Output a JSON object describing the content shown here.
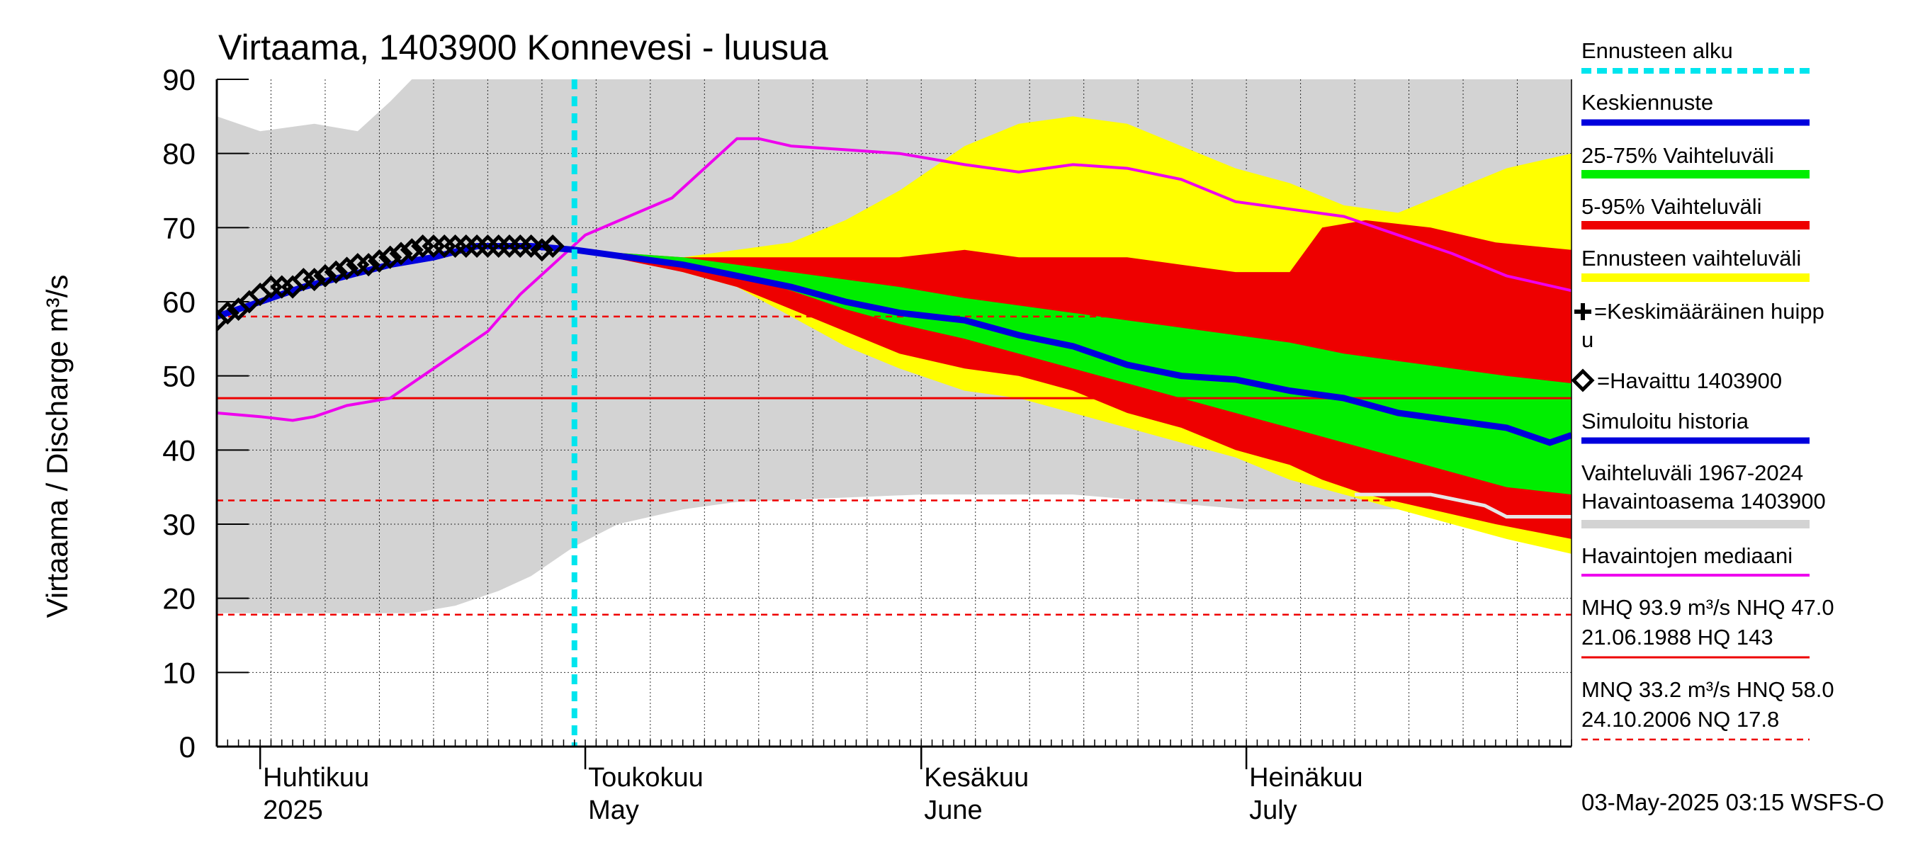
{
  "chart_data": {
    "type": "area",
    "title": "Virtaama, 1403900 Konnevesi - luusua",
    "ylabel": "Virtaama / Discharge    m³/s",
    "ylim": [
      0,
      90
    ],
    "yticks": [
      "0",
      "10",
      "20",
      "30",
      "40",
      "50",
      "60",
      "70",
      "80",
      "90"
    ],
    "xlim": [
      "2025-03-28",
      "2025-07-31"
    ],
    "month_labels": [
      {
        "fi": "Huhtikuu",
        "en": "2025",
        "date": "2025-04-01"
      },
      {
        "fi": "Toukokuu",
        "en": "May",
        "date": "2025-05-01"
      },
      {
        "fi": "Kesäkuu",
        "en": "June",
        "date": "2025-06-01"
      },
      {
        "fi": "Heinäkuu",
        "en": "July",
        "date": "2025-07-01"
      }
    ],
    "forecast_start": "2025-04-30",
    "colors": {
      "forecast_start": "#00e5ee",
      "mean_forecast": "#0000dd",
      "p25_75": "#00ee00",
      "p5_95": "#ee0000",
      "forecast_range": "#ffff00",
      "historical_range": "#d3d3d3",
      "median": "#ee00ee",
      "observed": "#000000",
      "ref_line": "#ee0000",
      "simulated": "#0000dd"
    },
    "reference_lines": [
      {
        "value": 47.0,
        "style": "solid"
      },
      {
        "value": 58.0,
        "style": "dashed"
      },
      {
        "value": 33.2,
        "style": "dashed"
      },
      {
        "value": 17.8,
        "style": "dashed"
      }
    ],
    "historical_range": [
      {
        "x": "2025-03-28",
        "low": 18,
        "high": 85
      },
      {
        "x": "2025-04-01",
        "low": 18,
        "high": 83
      },
      {
        "x": "2025-04-06",
        "low": 18,
        "high": 84
      },
      {
        "x": "2025-04-10",
        "low": 18,
        "high": 83
      },
      {
        "x": "2025-04-13",
        "low": 18,
        "high": 87
      },
      {
        "x": "2025-04-15",
        "low": 18,
        "high": 90
      },
      {
        "x": "2025-04-19",
        "low": 19,
        "high": 90
      },
      {
        "x": "2025-04-23",
        "low": 21,
        "high": 90
      },
      {
        "x": "2025-04-26",
        "low": 23,
        "high": 90
      },
      {
        "x": "2025-04-30",
        "low": 27,
        "high": 90
      },
      {
        "x": "2025-05-04",
        "low": 30,
        "high": 90
      },
      {
        "x": "2025-05-10",
        "low": 32,
        "high": 90
      },
      {
        "x": "2025-05-15",
        "low": 33,
        "high": 90
      },
      {
        "x": "2025-06-01",
        "low": 34,
        "high": 90
      },
      {
        "x": "2025-06-15",
        "low": 34,
        "high": 90
      },
      {
        "x": "2025-07-01",
        "low": 32,
        "high": 90
      },
      {
        "x": "2025-07-10",
        "low": 32,
        "high": 90
      },
      {
        "x": "2025-07-20",
        "low": 32,
        "high": 90
      },
      {
        "x": "2025-07-31",
        "low": 32,
        "high": 90
      }
    ],
    "forecast_range": [
      {
        "x": "2025-04-30",
        "low": 67,
        "high": 67
      },
      {
        "x": "2025-05-05",
        "low": 66,
        "high": 66
      },
      {
        "x": "2025-05-10",
        "low": 64,
        "high": 66
      },
      {
        "x": "2025-05-15",
        "low": 62,
        "high": 67
      },
      {
        "x": "2025-05-20",
        "low": 58,
        "high": 68
      },
      {
        "x": "2025-05-25",
        "low": 54,
        "high": 71
      },
      {
        "x": "2025-05-30",
        "low": 51,
        "high": 75
      },
      {
        "x": "2025-06-05",
        "low": 48,
        "high": 81
      },
      {
        "x": "2025-06-10",
        "low": 47,
        "high": 84
      },
      {
        "x": "2025-06-15",
        "low": 45,
        "high": 85
      },
      {
        "x": "2025-06-20",
        "low": 43,
        "high": 84
      },
      {
        "x": "2025-06-25",
        "low": 41,
        "high": 81
      },
      {
        "x": "2025-06-30",
        "low": 39,
        "high": 78
      },
      {
        "x": "2025-07-05",
        "low": 36,
        "high": 76
      },
      {
        "x": "2025-07-10",
        "low": 34,
        "high": 73
      },
      {
        "x": "2025-07-15",
        "low": 32,
        "high": 72
      },
      {
        "x": "2025-07-20",
        "low": 30,
        "high": 75
      },
      {
        "x": "2025-07-25",
        "low": 28,
        "high": 78
      },
      {
        "x": "2025-07-31",
        "low": 26,
        "high": 80
      }
    ],
    "p5_95": [
      {
        "x": "2025-04-30",
        "low": 67,
        "high": 67
      },
      {
        "x": "2025-05-05",
        "low": 65.5,
        "high": 66.5
      },
      {
        "x": "2025-05-10",
        "low": 64,
        "high": 66
      },
      {
        "x": "2025-05-15",
        "low": 62,
        "high": 66
      },
      {
        "x": "2025-05-20",
        "low": 59,
        "high": 66
      },
      {
        "x": "2025-05-25",
        "low": 56,
        "high": 66
      },
      {
        "x": "2025-05-30",
        "low": 53,
        "high": 66
      },
      {
        "x": "2025-06-05",
        "low": 51,
        "high": 67
      },
      {
        "x": "2025-06-10",
        "low": 50,
        "high": 66
      },
      {
        "x": "2025-06-15",
        "low": 48,
        "high": 66
      },
      {
        "x": "2025-06-20",
        "low": 45,
        "high": 66
      },
      {
        "x": "2025-06-25",
        "low": 43,
        "high": 65
      },
      {
        "x": "2025-06-30",
        "low": 40,
        "high": 64
      },
      {
        "x": "2025-07-05",
        "low": 38,
        "high": 64
      },
      {
        "x": "2025-07-08",
        "low": 36,
        "high": 70
      },
      {
        "x": "2025-07-12",
        "low": 34,
        "high": 71
      },
      {
        "x": "2025-07-18",
        "low": 32,
        "high": 70
      },
      {
        "x": "2025-07-24",
        "low": 30,
        "high": 68
      },
      {
        "x": "2025-07-31",
        "low": 28,
        "high": 67
      }
    ],
    "p25_75": [
      {
        "x": "2025-04-30",
        "low": 67,
        "high": 67
      },
      {
        "x": "2025-05-05",
        "low": 66,
        "high": 66.5
      },
      {
        "x": "2025-05-10",
        "low": 65,
        "high": 66
      },
      {
        "x": "2025-05-15",
        "low": 63.5,
        "high": 65
      },
      {
        "x": "2025-05-20",
        "low": 61.5,
        "high": 64
      },
      {
        "x": "2025-05-25",
        "low": 59,
        "high": 63
      },
      {
        "x": "2025-05-30",
        "low": 57,
        "high": 62
      },
      {
        "x": "2025-06-05",
        "low": 55,
        "high": 60.5
      },
      {
        "x": "2025-06-10",
        "low": 53,
        "high": 59.5
      },
      {
        "x": "2025-06-15",
        "low": 51,
        "high": 58.5
      },
      {
        "x": "2025-06-20",
        "low": 49,
        "high": 57.5
      },
      {
        "x": "2025-06-25",
        "low": 47,
        "high": 56.5
      },
      {
        "x": "2025-06-30",
        "low": 45,
        "high": 55.5
      },
      {
        "x": "2025-07-05",
        "low": 43,
        "high": 54.5
      },
      {
        "x": "2025-07-10",
        "low": 41,
        "high": 53
      },
      {
        "x": "2025-07-15",
        "low": 39,
        "high": 52
      },
      {
        "x": "2025-07-20",
        "low": 37,
        "high": 51
      },
      {
        "x": "2025-07-25",
        "low": 35,
        "high": 50
      },
      {
        "x": "2025-07-31",
        "low": 34,
        "high": 49
      }
    ],
    "mean_forecast": [
      {
        "x": "2025-04-30",
        "y": 67
      },
      {
        "x": "2025-05-05",
        "y": 66
      },
      {
        "x": "2025-05-10",
        "y": 65
      },
      {
        "x": "2025-05-15",
        "y": 63.5
      },
      {
        "x": "2025-05-20",
        "y": 62
      },
      {
        "x": "2025-05-25",
        "y": 60
      },
      {
        "x": "2025-05-30",
        "y": 58.5
      },
      {
        "x": "2025-06-05",
        "y": 57.5
      },
      {
        "x": "2025-06-10",
        "y": 55.5
      },
      {
        "x": "2025-06-15",
        "y": 54
      },
      {
        "x": "2025-06-20",
        "y": 51.5
      },
      {
        "x": "2025-06-25",
        "y": 50
      },
      {
        "x": "2025-06-30",
        "y": 49.5
      },
      {
        "x": "2025-07-05",
        "y": 48
      },
      {
        "x": "2025-07-10",
        "y": 47
      },
      {
        "x": "2025-07-15",
        "y": 45
      },
      {
        "x": "2025-07-20",
        "y": 44
      },
      {
        "x": "2025-07-25",
        "y": 43
      },
      {
        "x": "2025-07-29",
        "y": 41
      },
      {
        "x": "2025-07-31",
        "y": 42
      }
    ],
    "simulated_history": [
      {
        "x": "2025-03-28",
        "y": 58
      },
      {
        "x": "2025-04-01",
        "y": 60
      },
      {
        "x": "2025-04-05",
        "y": 62
      },
      {
        "x": "2025-04-09",
        "y": 63.5
      },
      {
        "x": "2025-04-13",
        "y": 65
      },
      {
        "x": "2025-04-17",
        "y": 66
      },
      {
        "x": "2025-04-21",
        "y": 67.5
      },
      {
        "x": "2025-04-26",
        "y": 67.5
      },
      {
        "x": "2025-04-30",
        "y": 67
      }
    ],
    "observed": [
      {
        "x": "2025-03-28",
        "y": 57.5
      },
      {
        "x": "2025-03-29",
        "y": 58.5
      },
      {
        "x": "2025-03-30",
        "y": 59
      },
      {
        "x": "2025-03-31",
        "y": 60
      },
      {
        "x": "2025-04-01",
        "y": 61
      },
      {
        "x": "2025-04-02",
        "y": 62
      },
      {
        "x": "2025-04-03",
        "y": 62
      },
      {
        "x": "2025-04-04",
        "y": 62
      },
      {
        "x": "2025-04-05",
        "y": 63
      },
      {
        "x": "2025-04-06",
        "y": 63
      },
      {
        "x": "2025-04-07",
        "y": 63.5
      },
      {
        "x": "2025-04-08",
        "y": 64
      },
      {
        "x": "2025-04-09",
        "y": 64.5
      },
      {
        "x": "2025-04-10",
        "y": 65
      },
      {
        "x": "2025-04-11",
        "y": 65
      },
      {
        "x": "2025-04-12",
        "y": 65.5
      },
      {
        "x": "2025-04-13",
        "y": 66
      },
      {
        "x": "2025-04-14",
        "y": 66.5
      },
      {
        "x": "2025-04-15",
        "y": 67
      },
      {
        "x": "2025-04-16",
        "y": 67.5
      },
      {
        "x": "2025-04-17",
        "y": 67.5
      },
      {
        "x": "2025-04-18",
        "y": 67.5
      },
      {
        "x": "2025-04-19",
        "y": 67.5
      },
      {
        "x": "2025-04-20",
        "y": 67.5
      },
      {
        "x": "2025-04-21",
        "y": 67.5
      },
      {
        "x": "2025-04-22",
        "y": 67.5
      },
      {
        "x": "2025-04-23",
        "y": 67.5
      },
      {
        "x": "2025-04-24",
        "y": 67.5
      },
      {
        "x": "2025-04-25",
        "y": 67.5
      },
      {
        "x": "2025-04-26",
        "y": 67.5
      },
      {
        "x": "2025-04-27",
        "y": 67
      },
      {
        "x": "2025-04-28",
        "y": 67.5
      }
    ],
    "median": [
      {
        "x": "2025-03-28",
        "y": 45
      },
      {
        "x": "2025-04-01",
        "y": 44.5
      },
      {
        "x": "2025-04-04",
        "y": 44
      },
      {
        "x": "2025-04-06",
        "y": 44.5
      },
      {
        "x": "2025-04-09",
        "y": 46
      },
      {
        "x": "2025-04-13",
        "y": 47
      },
      {
        "x": "2025-04-16",
        "y": 50
      },
      {
        "x": "2025-04-19",
        "y": 53
      },
      {
        "x": "2025-04-22",
        "y": 56
      },
      {
        "x": "2025-04-25",
        "y": 61
      },
      {
        "x": "2025-04-28",
        "y": 65
      },
      {
        "x": "2025-05-01",
        "y": 69
      },
      {
        "x": "2025-05-05",
        "y": 71.5
      },
      {
        "x": "2025-05-09",
        "y": 74
      },
      {
        "x": "2025-05-12",
        "y": 78
      },
      {
        "x": "2025-05-15",
        "y": 82
      },
      {
        "x": "2025-05-17",
        "y": 82
      },
      {
        "x": "2025-05-20",
        "y": 81
      },
      {
        "x": "2025-05-25",
        "y": 80.5
      },
      {
        "x": "2025-05-30",
        "y": 80
      },
      {
        "x": "2025-06-05",
        "y": 78.5
      },
      {
        "x": "2025-06-10",
        "y": 77.5
      },
      {
        "x": "2025-06-15",
        "y": 78.5
      },
      {
        "x": "2025-06-20",
        "y": 78
      },
      {
        "x": "2025-06-25",
        "y": 76.5
      },
      {
        "x": "2025-06-30",
        "y": 73.5
      },
      {
        "x": "2025-07-05",
        "y": 72.5
      },
      {
        "x": "2025-07-10",
        "y": 71.5
      },
      {
        "x": "2025-07-15",
        "y": 69
      },
      {
        "x": "2025-07-20",
        "y": 66.5
      },
      {
        "x": "2025-07-25",
        "y": 63.5
      },
      {
        "x": "2025-07-31",
        "y": 61.5
      }
    ],
    "simulated_low_tail": [
      {
        "x": "2025-07-11",
        "y": 34
      },
      {
        "x": "2025-07-18",
        "y": 34
      },
      {
        "x": "2025-07-23",
        "y": 32.5
      },
      {
        "x": "2025-07-25",
        "y": 31
      },
      {
        "x": "2025-07-31",
        "y": 31
      }
    ]
  },
  "legend": {
    "forecast_start": "Ennusteen alku",
    "mean_forecast": "Keskiennuste",
    "p25_75": "25-75% Vaihteluväli",
    "p5_95": "5-95% Vaihteluväli",
    "forecast_range": "Ennusteen vaihteluväli",
    "mean_peak_line1": "=Keskimääräinen huipp",
    "mean_peak_line2": "u",
    "observed": "=Havaittu 1403900",
    "simulated": "Simuloitu historia",
    "hist_range_line1": "Vaihteluväli 1967-2024",
    "hist_range_line2": " Havaintoasema 1403900",
    "median": "Havaintojen mediaani",
    "stats1_line1": "MHQ 93.9 m³/s NHQ 47.0",
    "stats1_line2": "21.06.1988 HQ  143",
    "stats2_line1": "MNQ 33.2 m³/s HNQ 58.0",
    "stats2_line2": "24.10.2006 NQ 17.8"
  },
  "footer": "03-May-2025 03:15 WSFS-O"
}
